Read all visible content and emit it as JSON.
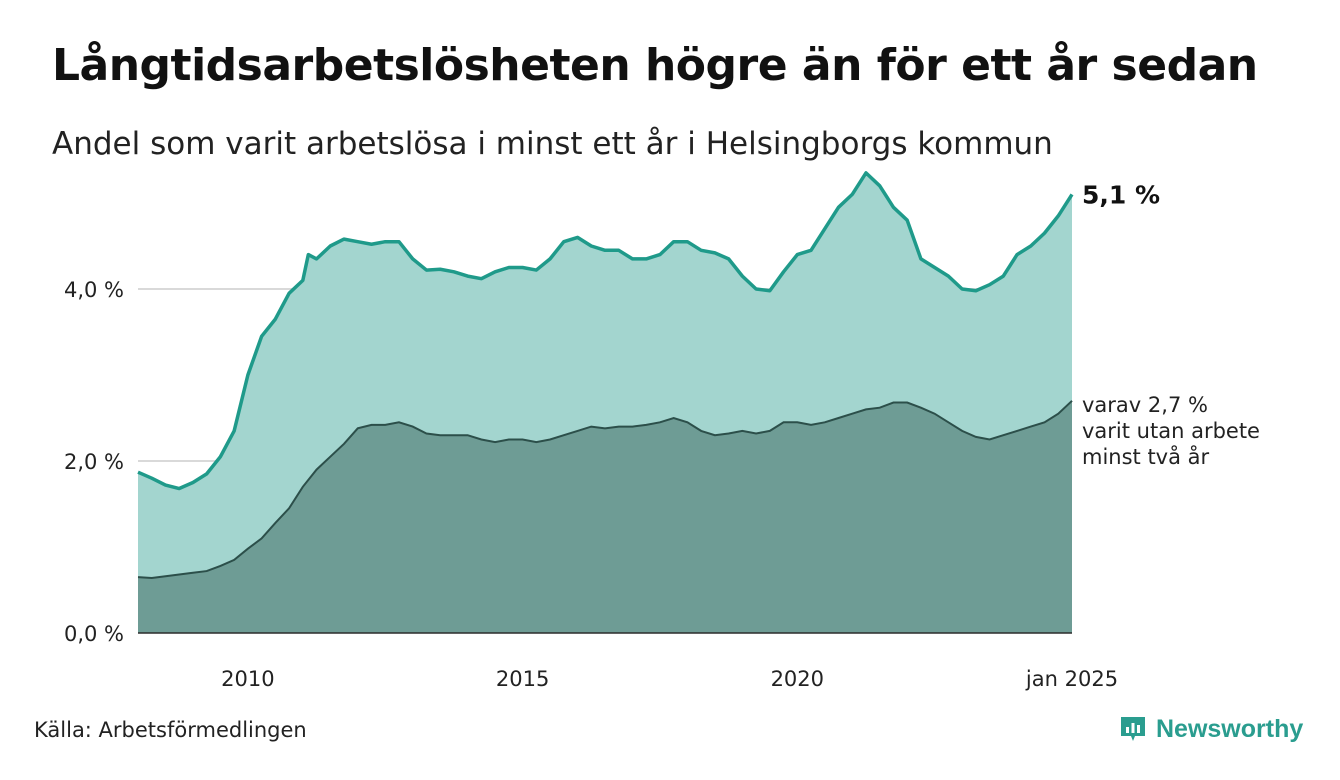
{
  "header": {
    "title": "Långtidsarbetslösheten högre än för ett år sedan",
    "subtitle": "Andel som varit arbetslösa i minst ett år i Helsingborgs kommun"
  },
  "footer": {
    "source": "Källa: Arbetsförmedlingen",
    "brand": "Newsworthy"
  },
  "colors": {
    "upper_fill": "#a3d5cf",
    "upper_line": "#1f9a8a",
    "lower_fill": "#6e9c95",
    "lower_line": "#2c4f4a",
    "grid": "#d9d9d9",
    "brand": "#2a9d8f"
  },
  "chart_data": {
    "type": "area",
    "x_axis": {
      "ticks": [
        2010,
        2015,
        2020,
        2025
      ],
      "tick_labels": [
        "2010",
        "2015",
        "2020",
        "jan 2025"
      ],
      "xlim": [
        2008.0,
        2025.0
      ]
    },
    "y_axis": {
      "ticks": [
        0,
        2,
        4
      ],
      "tick_labels": [
        "0,0 %",
        "2,0 %",
        "4,0 %"
      ],
      "ylim": [
        0,
        5.5
      ],
      "grid": true
    },
    "end_labels": {
      "upper": "5,1 %",
      "lower": [
        "varav 2,7 %",
        "varit utan arbete",
        "minst två år"
      ]
    },
    "series": [
      {
        "key": "upper",
        "x": [
          2008.0,
          2008.25,
          2008.5,
          2008.75,
          2009.0,
          2009.25,
          2009.5,
          2009.75,
          2010.0,
          2010.25,
          2010.5,
          2010.75,
          2011.0,
          2011.1,
          2011.25,
          2011.5,
          2011.75,
          2012.0,
          2012.25,
          2012.5,
          2012.75,
          2013.0,
          2013.25,
          2013.5,
          2013.75,
          2014.0,
          2014.25,
          2014.5,
          2014.75,
          2015.0,
          2015.25,
          2015.5,
          2015.75,
          2016.0,
          2016.25,
          2016.5,
          2016.75,
          2017.0,
          2017.25,
          2017.5,
          2017.75,
          2018.0,
          2018.25,
          2018.5,
          2018.75,
          2019.0,
          2019.25,
          2019.5,
          2019.75,
          2020.0,
          2020.25,
          2020.5,
          2020.75,
          2021.0,
          2021.25,
          2021.5,
          2021.75,
          2022.0,
          2022.25,
          2022.5,
          2022.75,
          2023.0,
          2023.25,
          2023.5,
          2023.75,
          2024.0,
          2024.25,
          2024.5,
          2024.75,
          2025.0
        ],
        "y": [
          1.87,
          1.8,
          1.72,
          1.68,
          1.75,
          1.85,
          2.05,
          2.35,
          3.0,
          3.45,
          3.65,
          3.95,
          4.1,
          4.4,
          4.35,
          4.5,
          4.58,
          4.55,
          4.52,
          4.55,
          4.55,
          4.35,
          4.22,
          4.23,
          4.2,
          4.15,
          4.12,
          4.2,
          4.25,
          4.25,
          4.22,
          4.35,
          4.55,
          4.6,
          4.5,
          4.45,
          4.45,
          4.35,
          4.35,
          4.4,
          4.55,
          4.55,
          4.45,
          4.42,
          4.35,
          4.15,
          4.0,
          3.98,
          4.2,
          4.4,
          4.45,
          4.7,
          4.95,
          5.1,
          5.35,
          5.2,
          4.95,
          4.8,
          4.35,
          4.25,
          4.15,
          4.0,
          3.98,
          4.05,
          4.15,
          4.4,
          4.5,
          4.65,
          4.85,
          5.1
        ]
      },
      {
        "key": "lower",
        "x": [
          2008.0,
          2008.25,
          2008.5,
          2008.75,
          2009.0,
          2009.25,
          2009.5,
          2009.75,
          2010.0,
          2010.25,
          2010.5,
          2010.75,
          2011.0,
          2011.25,
          2011.5,
          2011.75,
          2012.0,
          2012.25,
          2012.5,
          2012.75,
          2013.0,
          2013.25,
          2013.5,
          2013.75,
          2014.0,
          2014.25,
          2014.5,
          2014.75,
          2015.0,
          2015.25,
          2015.5,
          2015.75,
          2016.0,
          2016.25,
          2016.5,
          2016.75,
          2017.0,
          2017.25,
          2017.5,
          2017.75,
          2018.0,
          2018.25,
          2018.5,
          2018.75,
          2019.0,
          2019.25,
          2019.5,
          2019.75,
          2020.0,
          2020.25,
          2020.5,
          2020.75,
          2021.0,
          2021.25,
          2021.5,
          2021.75,
          2022.0,
          2022.25,
          2022.5,
          2022.75,
          2023.0,
          2023.25,
          2023.5,
          2023.75,
          2024.0,
          2024.25,
          2024.5,
          2024.75,
          2025.0
        ],
        "y": [
          0.65,
          0.64,
          0.66,
          0.68,
          0.7,
          0.72,
          0.78,
          0.85,
          0.98,
          1.1,
          1.28,
          1.45,
          1.7,
          1.9,
          2.05,
          2.2,
          2.38,
          2.42,
          2.42,
          2.45,
          2.4,
          2.32,
          2.3,
          2.3,
          2.3,
          2.25,
          2.22,
          2.25,
          2.25,
          2.22,
          2.25,
          2.3,
          2.35,
          2.4,
          2.38,
          2.4,
          2.4,
          2.42,
          2.45,
          2.5,
          2.45,
          2.35,
          2.3,
          2.32,
          2.35,
          2.32,
          2.35,
          2.45,
          2.45,
          2.42,
          2.45,
          2.5,
          2.55,
          2.6,
          2.62,
          2.68,
          2.68,
          2.62,
          2.55,
          2.45,
          2.35,
          2.28,
          2.25,
          2.3,
          2.35,
          2.4,
          2.45,
          2.55,
          2.7
        ]
      }
    ]
  }
}
